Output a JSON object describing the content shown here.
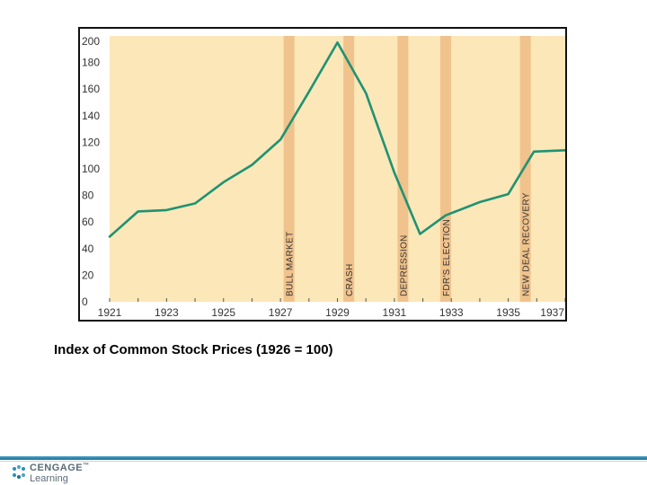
{
  "chart_data": {
    "type": "line",
    "title": "Index of Common Stock Prices (1926 = 100)",
    "xlabel": "",
    "ylabel": "",
    "xlim": [
      1921,
      1937
    ],
    "ylim": [
      0,
      200
    ],
    "x_ticks": [
      1921,
      1923,
      1925,
      1927,
      1929,
      1931,
      1933,
      1935,
      1937
    ],
    "y_ticks": [
      0,
      20,
      40,
      60,
      80,
      100,
      120,
      140,
      160,
      180,
      200
    ],
    "grid": false,
    "series": [
      {
        "name": "Index of Common Stock Prices",
        "color": "#1f9273",
        "x": [
          1921,
          1922,
          1923,
          1924,
          1925,
          1926,
          1927,
          1928,
          1929,
          1930,
          1931,
          1931.9,
          1932.8,
          1934,
          1935,
          1935.9,
          1937
        ],
        "values": [
          49,
          68,
          69,
          74,
          90,
          103,
          122,
          158,
          195,
          157,
          97,
          51,
          65,
          75,
          81,
          113,
          114
        ]
      }
    ],
    "annotations": [
      {
        "label": "BULL MARKET",
        "x": 1927.3
      },
      {
        "label": "CRASH",
        "x": 1929.4
      },
      {
        "label": "DEPRESSION",
        "x": 1931.3
      },
      {
        "label": "FDR'S ELECTION",
        "x": 1932.8
      },
      {
        "label": "NEW DEAL RECOVERY",
        "x": 1935.6
      }
    ],
    "colors": {
      "plot_background": "#fbe7b8",
      "band": "#f0c28c",
      "line": "#1f9273"
    }
  },
  "caption": "Index of Common Stock Prices (1926 = 100)",
  "logo": {
    "top": "CENGAGE",
    "bottom": "Learning",
    "trademark": "™"
  }
}
